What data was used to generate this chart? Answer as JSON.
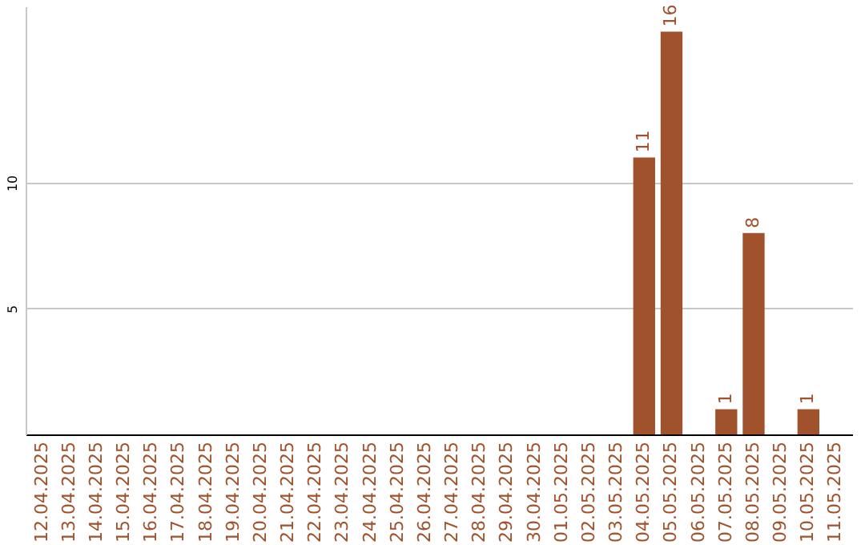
{
  "chart_data": {
    "type": "bar",
    "categories": [
      "12.04.2025",
      "13.04.2025",
      "14.04.2025",
      "15.04.2025",
      "16.04.2025",
      "17.04.2025",
      "18.04.2025",
      "19.04.2025",
      "20.04.2025",
      "21.04.2025",
      "22.04.2025",
      "23.04.2025",
      "24.04.2025",
      "25.04.2025",
      "26.04.2025",
      "27.04.2025",
      "28.04.2025",
      "29.04.2025",
      "30.04.2025",
      "01.05.2025",
      "02.05.2025",
      "03.05.2025",
      "04.05.2025",
      "05.05.2025",
      "06.05.2025",
      "07.05.2025",
      "08.05.2025",
      "09.05.2025",
      "10.05.2025",
      "11.05.2025"
    ],
    "values": [
      0,
      0,
      0,
      0,
      0,
      0,
      0,
      0,
      0,
      0,
      0,
      0,
      0,
      0,
      0,
      0,
      0,
      0,
      0,
      0,
      0,
      0,
      11,
      16,
      0,
      1,
      8,
      0,
      1,
      0
    ],
    "value_labels": [
      null,
      null,
      null,
      null,
      null,
      null,
      null,
      null,
      null,
      null,
      null,
      null,
      null,
      null,
      null,
      null,
      null,
      null,
      null,
      null,
      null,
      null,
      "11",
      "16",
      null,
      "1",
      "8",
      null,
      "1",
      null
    ],
    "color": "#a0522d",
    "ylim": [
      0,
      17
    ],
    "yticks": [
      5,
      10
    ],
    "grid": "y"
  }
}
